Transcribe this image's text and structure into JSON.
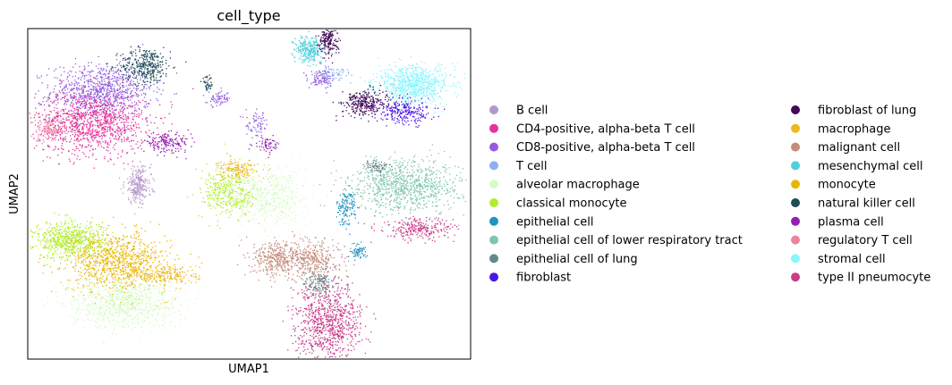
{
  "chart_data": {
    "type": "scatter",
    "title": "cell_type",
    "xlabel": "UMAP1",
    "ylabel": "UMAP2",
    "x_ticks": [],
    "y_ticks": [],
    "legend_position": "right",
    "legend": [
      {
        "name": "B cell",
        "color": "#b497c8"
      },
      {
        "name": "CD4-positive, alpha-beta T cell",
        "color": "#e5329b"
      },
      {
        "name": "CD8-positive, alpha-beta T cell",
        "color": "#925ee0"
      },
      {
        "name": "T cell",
        "color": "#8cb0f5"
      },
      {
        "name": "alveolar macrophage",
        "color": "#d6fbc7"
      },
      {
        "name": "classical monocyte",
        "color": "#b1ee2c"
      },
      {
        "name": "epithelial cell",
        "color": "#1f93c4"
      },
      {
        "name": "epithelial cell of lower respiratory tract",
        "color": "#80c6b1"
      },
      {
        "name": "epithelial cell of lung",
        "color": "#678887"
      },
      {
        "name": "fibroblast",
        "color": "#4a16e6"
      },
      {
        "name": "fibroblast of lung",
        "color": "#430a57"
      },
      {
        "name": "macrophage",
        "color": "#edb821"
      },
      {
        "name": "malignant cell",
        "color": "#c68c7c"
      },
      {
        "name": "mesenchymal cell",
        "color": "#4dd0dc"
      },
      {
        "name": "monocyte",
        "color": "#e9b504"
      },
      {
        "name": "natural killer cell",
        "color": "#1f4a59"
      },
      {
        "name": "plasma cell",
        "color": "#9320b3"
      },
      {
        "name": "regulatory T cell",
        "color": "#eb829f"
      },
      {
        "name": "stromal cell",
        "color": "#88f6fd"
      },
      {
        "name": "type II pneumocyte",
        "color": "#c93c8a"
      }
    ],
    "clusters": [
      {
        "label": "CD8-positive, alpha-beta T cell",
        "x": -7.2,
        "y": 5.6,
        "sx": 1.3,
        "sy": 0.75,
        "n": 900
      },
      {
        "label": "natural killer cell",
        "x": -4.9,
        "y": 7.0,
        "sx": 0.65,
        "sy": 0.5,
        "n": 350
      },
      {
        "label": "CD4-positive, alpha-beta T cell",
        "x": -7.7,
        "y": 3.9,
        "sx": 1.45,
        "sy": 0.85,
        "n": 1100
      },
      {
        "label": "regulatory T cell",
        "x": -9.8,
        "y": 3.5,
        "sx": 0.55,
        "sy": 0.35,
        "n": 140
      },
      {
        "label": "B cell",
        "x": -5.3,
        "y": 0.5,
        "sx": 0.35,
        "sy": 0.5,
        "n": 260
      },
      {
        "label": "plasma cell",
        "x": -3.8,
        "y": 2.8,
        "sx": 0.6,
        "sy": 0.25,
        "n": 180
      },
      {
        "label": "natural killer cell",
        "x": -1.7,
        "y": 6.0,
        "sx": 0.15,
        "sy": 0.2,
        "n": 40
      },
      {
        "label": "CD8-positive, alpha-beta T cell",
        "x": -1.1,
        "y": 5.2,
        "sx": 0.3,
        "sy": 0.2,
        "n": 70
      },
      {
        "label": "CD8-positive, alpha-beta T cell",
        "x": 0.9,
        "y": 3.8,
        "sx": 0.3,
        "sy": 0.35,
        "n": 70
      },
      {
        "label": "plasma cell",
        "x": 1.4,
        "y": 2.7,
        "sx": 0.35,
        "sy": 0.2,
        "n": 60
      },
      {
        "label": "classical monocyte",
        "x": -8.8,
        "y": -2.5,
        "sx": 0.95,
        "sy": 0.5,
        "n": 700
      },
      {
        "label": "monocyte",
        "x": -6.4,
        "y": -3.7,
        "sx": 1.3,
        "sy": 0.8,
        "n": 900
      },
      {
        "label": "macrophage",
        "x": -3.8,
        "y": -4.4,
        "sx": 0.9,
        "sy": 0.3,
        "n": 220
      },
      {
        "label": "alveolar macrophage",
        "x": -6.1,
        "y": -5.9,
        "sx": 1.4,
        "sy": 0.7,
        "n": 900
      },
      {
        "label": "classical monocyte",
        "x": -0.5,
        "y": 0.1,
        "sx": 0.75,
        "sy": 0.7,
        "n": 400
      },
      {
        "label": "macrophage",
        "x": -0.1,
        "y": 1.4,
        "sx": 0.5,
        "sy": 0.25,
        "n": 150
      },
      {
        "label": "alveolar macrophage",
        "x": 1.6,
        "y": -0.2,
        "sx": 0.9,
        "sy": 0.8,
        "n": 450
      },
      {
        "label": "epithelial cell of lower respiratory tract",
        "x": 8.7,
        "y": 0.5,
        "sx": 1.4,
        "sy": 0.7,
        "n": 900
      },
      {
        "label": "epithelial cell of lung",
        "x": 7.1,
        "y": 1.5,
        "sx": 0.35,
        "sy": 0.2,
        "n": 80
      },
      {
        "label": "epithelial cell",
        "x": 5.5,
        "y": -0.7,
        "sx": 0.25,
        "sy": 0.5,
        "n": 140
      },
      {
        "label": "epithelial cell",
        "x": 6.1,
        "y": -3.1,
        "sx": 0.25,
        "sy": 0.2,
        "n": 70
      },
      {
        "label": "type II pneumocyte",
        "x": 9.3,
        "y": -1.9,
        "sx": 0.9,
        "sy": 0.3,
        "n": 260
      },
      {
        "label": "type II pneumocyte",
        "x": 4.6,
        "y": -7.0,
        "sx": 0.85,
        "sy": 1.1,
        "n": 900
      },
      {
        "label": "malignant cell",
        "x": 1.9,
        "y": -3.5,
        "sx": 0.65,
        "sy": 0.5,
        "n": 350
      },
      {
        "label": "malignant cell",
        "x": 3.8,
        "y": -3.5,
        "sx": 0.7,
        "sy": 0.5,
        "n": 350
      },
      {
        "label": "epithelial cell of lung",
        "x": 4.1,
        "y": -4.8,
        "sx": 0.4,
        "sy": 0.35,
        "n": 140
      },
      {
        "label": "stromal cell",
        "x": 9.0,
        "y": 6.0,
        "sx": 0.95,
        "sy": 0.5,
        "n": 800
      },
      {
        "label": "fibroblast",
        "x": 8.5,
        "y": 4.5,
        "sx": 0.7,
        "sy": 0.35,
        "n": 260
      },
      {
        "label": "fibroblast of lung",
        "x": 6.4,
        "y": 5.0,
        "sx": 0.55,
        "sy": 0.35,
        "n": 300
      },
      {
        "label": "mesenchymal cell",
        "x": 3.6,
        "y": 7.9,
        "sx": 0.35,
        "sy": 0.35,
        "n": 260
      },
      {
        "label": "fibroblast of lung",
        "x": 4.6,
        "y": 8.4,
        "sx": 0.25,
        "sy": 0.4,
        "n": 200
      },
      {
        "label": "CD8-positive, alpha-beta T cell",
        "x": 4.2,
        "y": 6.3,
        "sx": 0.35,
        "sy": 0.3,
        "n": 120
      },
      {
        "label": "T cell",
        "x": 4.9,
        "y": 6.6,
        "sx": 0.4,
        "sy": 0.2,
        "n": 60
      }
    ]
  }
}
